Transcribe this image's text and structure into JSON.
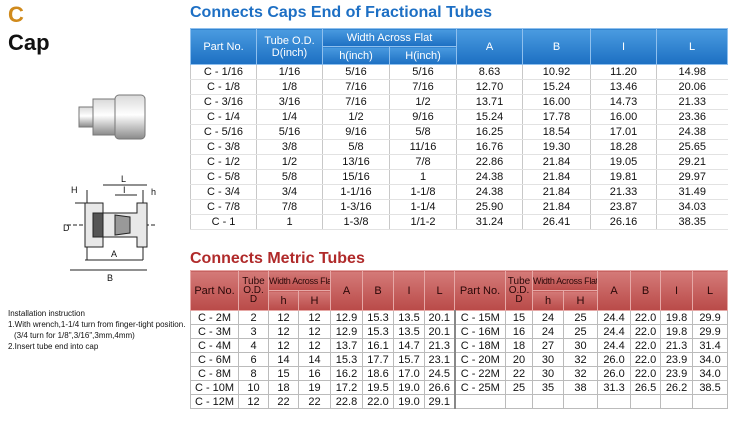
{
  "header": {
    "code": "C",
    "title": "Cap"
  },
  "diagram_labels": [
    "H",
    "L",
    "I",
    "h",
    "D",
    "A",
    "B"
  ],
  "instructions": [
    "Installation instruction",
    "1.With wrench,1-1/4 turn from finger-tight position.",
    "(3/4 turn for 1/8\",3/16\",3mm,4mm)",
    "2.Insert tube end into cap"
  ],
  "fractional_table": {
    "title": "Connects Caps End of Fractional Tubes",
    "headers": {
      "part_no": "Part No.",
      "tube_od": "Tube O.D.",
      "tube_unit": "D(inch)",
      "width": "Width Across Flat",
      "h": "h(inch)",
      "H": "H(inch)",
      "A": "A",
      "B": "B",
      "I": "I",
      "L": "L"
    },
    "rows": [
      [
        "C - 1/16",
        "1/16",
        "5/16",
        "5/16",
        "8.63",
        "10.92",
        "11.20",
        "14.98"
      ],
      [
        "C - 1/8",
        "1/8",
        "7/16",
        "7/16",
        "12.70",
        "15.24",
        "13.46",
        "20.06"
      ],
      [
        "C - 3/16",
        "3/16",
        "7/16",
        "1/2",
        "13.71",
        "16.00",
        "14.73",
        "21.33"
      ],
      [
        "C - 1/4",
        "1/4",
        "1/2",
        "9/16",
        "15.24",
        "17.78",
        "16.00",
        "23.36"
      ],
      [
        "C - 5/16",
        "5/16",
        "9/16",
        "5/8",
        "16.25",
        "18.54",
        "17.01",
        "24.38"
      ],
      [
        "C - 3/8",
        "3/8",
        "5/8",
        "11/16",
        "16.76",
        "19.30",
        "18.28",
        "25.65"
      ],
      [
        "C - 1/2",
        "1/2",
        "13/16",
        "7/8",
        "22.86",
        "21.84",
        "19.05",
        "29.21"
      ],
      [
        "C - 5/8",
        "5/8",
        "15/16",
        "1",
        "24.38",
        "21.84",
        "19.81",
        "29.97"
      ],
      [
        "C - 3/4",
        "3/4",
        "1-1/16",
        "1-1/8",
        "24.38",
        "21.84",
        "21.33",
        "31.49"
      ],
      [
        "C - 7/8",
        "7/8",
        "1-3/16",
        "1-1/4",
        "25.90",
        "21.84",
        "23.87",
        "34.03"
      ],
      [
        "C -  1",
        "1",
        "1-3/8",
        "1/1-2",
        "31.24",
        "26.41",
        "26.16",
        "38.35"
      ]
    ]
  },
  "metric_table": {
    "title": "Connects Metric Tubes",
    "headers": {
      "part_no": "Part No.",
      "tube_od": "Tube O.D.",
      "tube_unit": "D",
      "width": "Width Across Flat",
      "h": "h",
      "H": "H",
      "A": "A",
      "B": "B",
      "I": "I",
      "L": "L"
    },
    "left_rows": [
      [
        "C - 2M",
        "2",
        "12",
        "12",
        "12.9",
        "15.3",
        "13.5",
        "20.1"
      ],
      [
        "C - 3M",
        "3",
        "12",
        "12",
        "12.9",
        "15.3",
        "13.5",
        "20.1"
      ],
      [
        "C - 4M",
        "4",
        "12",
        "12",
        "13.7",
        "16.1",
        "14.7",
        "21.3"
      ],
      [
        "C - 6M",
        "6",
        "14",
        "14",
        "15.3",
        "17.7",
        "15.7",
        "23.1"
      ],
      [
        "C - 8M",
        "8",
        "15",
        "16",
        "16.2",
        "18.6",
        "17.0",
        "24.5"
      ],
      [
        "C - 10M",
        "10",
        "18",
        "19",
        "17.2",
        "19.5",
        "19.0",
        "26.6"
      ],
      [
        "C - 12M",
        "12",
        "22",
        "22",
        "22.8",
        "22.0",
        "19.0",
        "29.1"
      ]
    ],
    "right_rows": [
      [
        "C - 15M",
        "15",
        "24",
        "25",
        "24.4",
        "22.0",
        "19.8",
        "29.9"
      ],
      [
        "C - 16M",
        "16",
        "24",
        "25",
        "24.4",
        "22.0",
        "19.8",
        "29.9"
      ],
      [
        "C - 18M",
        "18",
        "27",
        "30",
        "24.4",
        "22.0",
        "21.3",
        "31.4"
      ],
      [
        "C - 20M",
        "20",
        "30",
        "32",
        "26.0",
        "22.0",
        "23.9",
        "34.0"
      ],
      [
        "C - 22M",
        "22",
        "30",
        "32",
        "26.0",
        "22.0",
        "23.9",
        "34.0"
      ],
      [
        "C - 25M",
        "25",
        "35",
        "38",
        "31.3",
        "26.5",
        "26.2",
        "38.5"
      ]
    ]
  }
}
